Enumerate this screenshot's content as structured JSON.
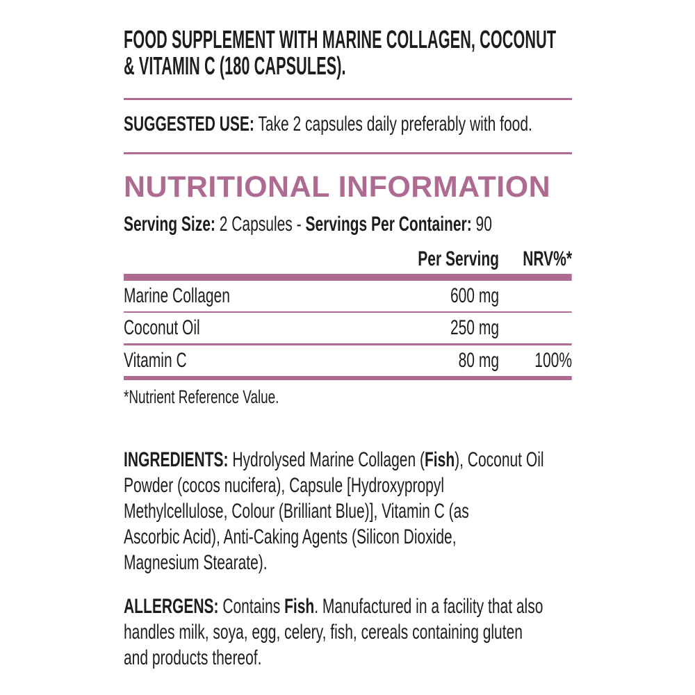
{
  "colors": {
    "accent": "#ae6b91",
    "text": "#1d1d1b",
    "background": "#ffffff"
  },
  "header": {
    "title": "FOOD SUPPLEMENT WITH MARINE COLLAGEN, COCONUT\n& VITAMIN C (180 CAPSULES)."
  },
  "suggested_use": {
    "label": "SUGGESTED USE:",
    "text": "Take 2 capsules daily preferably with food."
  },
  "nutrition": {
    "heading": "NUTRITIONAL INFORMATION",
    "serving": {
      "size_label": "Serving Size:",
      "size_value": "2 Capsules",
      "separator": "-",
      "per_container_label": "Servings Per Container:",
      "per_container_value": "90"
    },
    "table": {
      "col_per_serving": "Per Serving",
      "col_nrv": "NRV%*",
      "rows": [
        {
          "name": "Marine Collagen",
          "per_serving": "600 mg",
          "nrv": ""
        },
        {
          "name": "Coconut Oil",
          "per_serving": "250 mg",
          "nrv": ""
        },
        {
          "name": "Vitamin C",
          "per_serving": "80 mg",
          "nrv": "100%"
        }
      ]
    },
    "footnote": "*Nutrient Reference Value."
  },
  "ingredients": {
    "segments": [
      {
        "text": "INGREDIENTS: ",
        "bold": true
      },
      {
        "text": "Hydrolysed Marine Collagen (",
        "bold": false
      },
      {
        "text": "Fish",
        "bold": true
      },
      {
        "text": "), Coconut Oil\nPowder (cocos nucifera), Capsule [Hydroxypropyl\nMethylcellulose, Colour (Brilliant Blue)], Vitamin C (as\nAscorbic Acid), Anti-Caking Agents (Silicon Dioxide,\nMagnesium Stearate).",
        "bold": false
      }
    ]
  },
  "allergens": {
    "segments": [
      {
        "text": "ALLERGENS: ",
        "bold": true
      },
      {
        "text": "Contains ",
        "bold": false
      },
      {
        "text": "Fish",
        "bold": true
      },
      {
        "text": ". Manufactured in a facility that also\nhandles milk, soya, egg, celery, fish, cereals containing gluten\nand products thereof.",
        "bold": false
      }
    ]
  }
}
